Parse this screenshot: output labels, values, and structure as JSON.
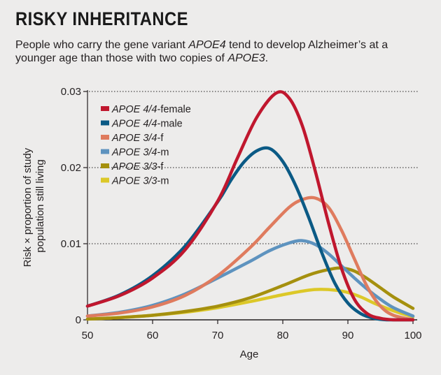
{
  "header": {
    "title": "RISKY INHERITANCE",
    "subtitle_parts": [
      "People who carry the gene variant ",
      "APOE4",
      " tend to develop Alzheimer’s at a younger age than those with two copies of ",
      "APOE3",
      "."
    ]
  },
  "chart_data": {
    "type": "line",
    "title": "RISKY INHERITANCE",
    "xlabel": "Age",
    "ylabel_lines": [
      "Risk × proportion of study",
      "population still living"
    ],
    "xlim": [
      50,
      100
    ],
    "ylim": [
      0,
      0.03
    ],
    "x_ticks": [
      "50",
      "60",
      "70",
      "80",
      "90",
      "100"
    ],
    "y_ticks": [
      "0",
      "0.01",
      "0.02",
      "0.03"
    ],
    "grid": "dotted horizontal at 0.01, 0.02, 0.03",
    "legend_position": "top-left",
    "series": [
      {
        "name_italic": "APOE 4/4",
        "name_rest": "-female",
        "color": "#c0172e",
        "x": [
          50,
          55,
          60,
          65,
          70,
          73,
          76,
          79,
          81,
          83,
          85,
          87,
          89,
          91,
          93,
          95,
          97,
          100
        ],
        "y": [
          0.0018,
          0.0032,
          0.0055,
          0.0092,
          0.0156,
          0.0212,
          0.0266,
          0.0298,
          0.0291,
          0.0255,
          0.0195,
          0.0128,
          0.0068,
          0.0027,
          0.0008,
          0.0002,
          0.0,
          0.0
        ]
      },
      {
        "name_italic": "APOE 4/4",
        "name_rest": "-male",
        "color": "#0b5a85",
        "x": [
          50,
          55,
          60,
          65,
          70,
          72,
          74,
          76,
          78,
          80,
          82,
          84,
          86,
          88,
          90,
          92,
          94,
          96,
          100
        ],
        "y": [
          0.0018,
          0.0033,
          0.0058,
          0.0097,
          0.0155,
          0.0183,
          0.0207,
          0.0222,
          0.0225,
          0.0208,
          0.0176,
          0.0134,
          0.0088,
          0.0048,
          0.0022,
          0.0008,
          0.0002,
          0.0,
          0.0
        ]
      },
      {
        "name_italic": "APOE 3/4",
        "name_rest": "-f",
        "color": "#df7b5e",
        "x": [
          50,
          55,
          60,
          65,
          70,
          75,
          78,
          81,
          83,
          85,
          87,
          89,
          91,
          93,
          95,
          97,
          100
        ],
        "y": [
          0.0005,
          0.0009,
          0.0017,
          0.0032,
          0.0058,
          0.0095,
          0.0122,
          0.0148,
          0.0158,
          0.016,
          0.0148,
          0.0118,
          0.008,
          0.0043,
          0.0018,
          0.0006,
          0.0
        ]
      },
      {
        "name_italic": "APOE 3/4",
        "name_rest": "-m",
        "color": "#5e93bf",
        "x": [
          50,
          55,
          60,
          65,
          70,
          75,
          78,
          81,
          83,
          85,
          87,
          89,
          91,
          93,
          95,
          97,
          100
        ],
        "y": [
          0.0005,
          0.001,
          0.0019,
          0.0034,
          0.0055,
          0.0077,
          0.0091,
          0.0101,
          0.0104,
          0.0099,
          0.0087,
          0.0071,
          0.0055,
          0.004,
          0.0027,
          0.0016,
          0.0005
        ]
      },
      {
        "name_italic": "APOE 3/3",
        "name_rest": "-f",
        "color": "#a5900e",
        "x": [
          50,
          55,
          60,
          65,
          70,
          75,
          80,
          84,
          87,
          89,
          91,
          93,
          95,
          97,
          100
        ],
        "y": [
          0.0001,
          0.0003,
          0.0006,
          0.0011,
          0.0018,
          0.0029,
          0.0045,
          0.0059,
          0.0066,
          0.0068,
          0.0064,
          0.0054,
          0.0042,
          0.003,
          0.0015
        ]
      },
      {
        "name_italic": "APOE 3/3",
        "name_rest": "-m",
        "color": "#dcc828",
        "x": [
          50,
          55,
          60,
          65,
          70,
          75,
          80,
          84,
          86,
          88,
          90,
          92,
          94,
          96,
          98,
          100
        ],
        "y": [
          0.0001,
          0.0003,
          0.0006,
          0.001,
          0.0016,
          0.0024,
          0.0033,
          0.0039,
          0.004,
          0.0039,
          0.0036,
          0.003,
          0.0022,
          0.0015,
          0.0009,
          0.0004
        ]
      }
    ]
  }
}
